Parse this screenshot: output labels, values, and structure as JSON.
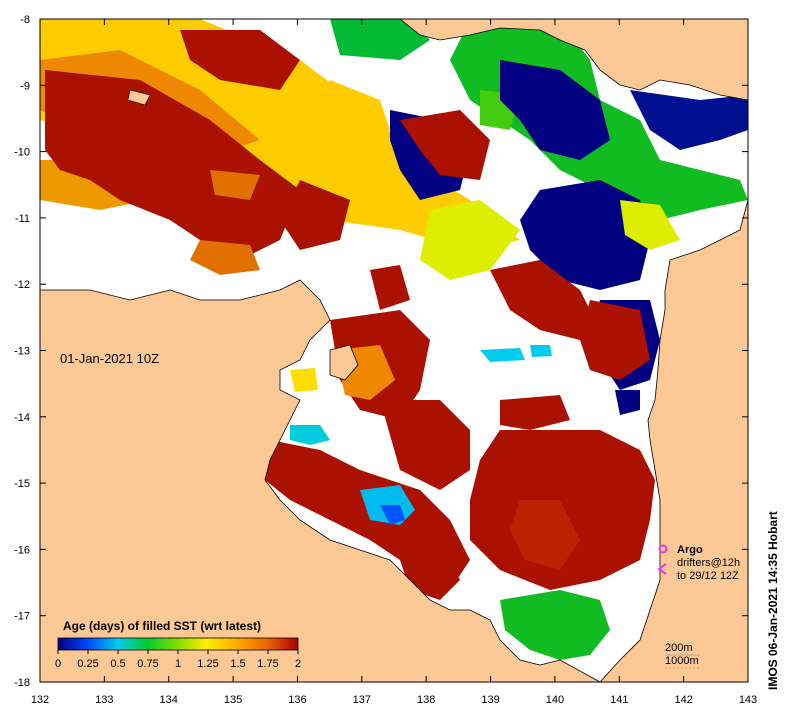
{
  "map": {
    "timestamp": "01-Jan-2021 10Z",
    "x_ticks": [
      "132",
      "133",
      "134",
      "135",
      "136",
      "137",
      "138",
      "139",
      "140",
      "141",
      "142",
      "143"
    ],
    "y_ticks": [
      "-8",
      "-9",
      "-10",
      "-11",
      "-12",
      "-13",
      "-14",
      "-15",
      "-16",
      "-17",
      "-18"
    ],
    "colors": {
      "land": "#fcc896",
      "ocean_empty": "#ffffff",
      "coast": "#000000"
    }
  },
  "colorbar": {
    "title": "Age (days) of filled SST (wrt latest)",
    "tick_labels": [
      "0",
      "0.25",
      "0.5",
      "0.75",
      "1",
      "1.25",
      "1.5",
      "1.75",
      "2"
    ],
    "colors": [
      "#000080",
      "#0044ff",
      "#00ccee",
      "#00cc33",
      "#88dd00",
      "#ffee00",
      "#ffaa00",
      "#ee6600",
      "#aa0000"
    ]
  },
  "legend": {
    "argo_label": "Argo",
    "drifters_label": "drifters@12h",
    "drifters_range": "to 29/12 12Z",
    "argo_color": "#ee33ee",
    "drifter_color": "#ee33ee",
    "contour_200": "200m",
    "contour_1000": "1000m"
  },
  "credit": "IMOS 06-Jan-2021 14:35 Hobart"
}
